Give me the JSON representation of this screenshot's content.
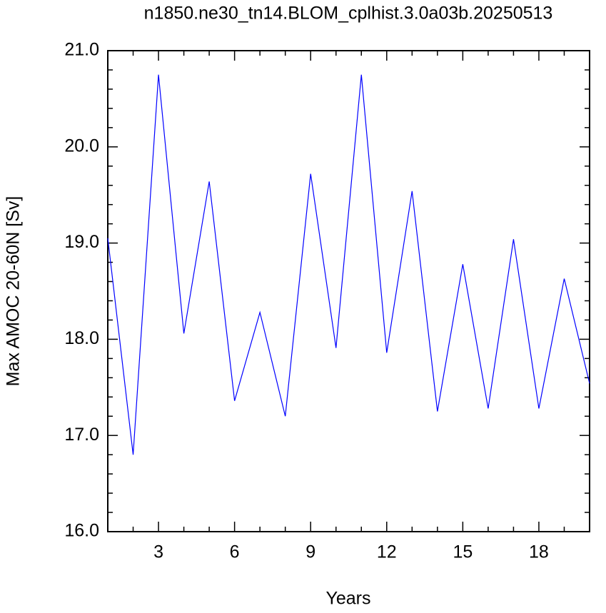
{
  "chart_data": {
    "type": "line",
    "title": "n1850.ne30_tn14.BLOM_cplhist.3.0a03b.20250513",
    "x_label": "Years",
    "y_label": "Max AMOC 20-60N [Sv]",
    "x": [
      1,
      2,
      3,
      4,
      5,
      6,
      7,
      8,
      9,
      10,
      11,
      12,
      13,
      14,
      15,
      16,
      17,
      18,
      19,
      20
    ],
    "series": [
      {
        "name": "Max AMOC",
        "color": "#0000ff",
        "values": [
          19.05,
          16.8,
          20.75,
          18.06,
          19.64,
          17.36,
          18.28,
          17.2,
          19.72,
          17.91,
          20.75,
          17.86,
          19.54,
          17.25,
          18.78,
          17.28,
          19.04,
          17.28,
          18.63,
          17.54
        ]
      }
    ],
    "xlim": [
      1,
      20
    ],
    "xticks": [
      3,
      6,
      9,
      12,
      15,
      18
    ],
    "ylim": [
      16,
      21
    ],
    "yticks": [
      {
        "value": 16,
        "label": "16.0"
      },
      {
        "value": 17,
        "label": "17.0"
      },
      {
        "value": 18,
        "label": "18.0"
      },
      {
        "value": 19,
        "label": "19.0"
      },
      {
        "value": 20,
        "label": "20.0"
      },
      {
        "value": 21,
        "label": "21.0"
      }
    ],
    "grid": false
  }
}
